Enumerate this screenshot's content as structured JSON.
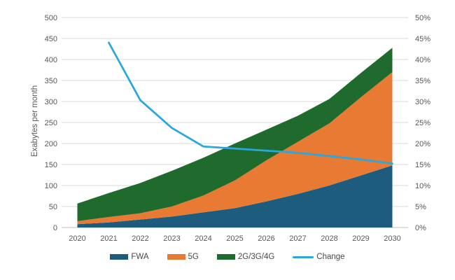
{
  "chart_data": {
    "type": "area",
    "subtype": "stacked-area-with-secondary-line",
    "title": "",
    "ylabel": "Exabytes per month",
    "categories": [
      "2020",
      "2021",
      "2022",
      "2023",
      "2024",
      "2025",
      "2026",
      "2027",
      "2028",
      "2029",
      "2030"
    ],
    "series": [
      {
        "name": "FWA",
        "kind": "area",
        "axis": "left",
        "color": "#1D5C7D",
        "values": [
          8,
          12,
          19,
          26,
          36,
          46,
          62,
          80,
          100,
          124,
          148
        ]
      },
      {
        "name": "5G",
        "kind": "area",
        "axis": "left",
        "color": "#E87A33",
        "values": [
          7,
          13,
          15,
          24,
          40,
          66,
          98,
          124,
          148,
          186,
          222
        ]
      },
      {
        "name": "2G/3G/4G",
        "kind": "area",
        "axis": "left",
        "color": "#1F6B2E",
        "values": [
          42,
          57,
          72,
          85,
          90,
          88,
          73,
          62,
          58,
          58,
          58
        ]
      },
      {
        "name": "Change",
        "kind": "line",
        "axis": "right",
        "color": "#2AA7DD",
        "values": [
          null,
          44,
          30.3,
          23.7,
          19.3,
          18.8,
          18.3,
          17.8,
          17,
          16.2,
          15.2
        ]
      }
    ],
    "totals_left_axis": [
      57,
      82,
      106,
      135,
      166,
      200,
      233,
      266,
      306,
      368,
      428
    ],
    "left_axis": {
      "min": 0,
      "max": 500,
      "step": 50,
      "tick_labels": [
        "0",
        "50",
        "100",
        "150",
        "200",
        "250",
        "300",
        "350",
        "400",
        "450",
        "500"
      ]
    },
    "right_axis": {
      "min": 0,
      "max": 50,
      "step": 5,
      "tick_labels": [
        "0%",
        "5%",
        "10%",
        "15%",
        "20%",
        "25%",
        "30%",
        "35%",
        "40%",
        "45%",
        "50%"
      ]
    },
    "grid": true,
    "legend_position": "bottom",
    "colors": {
      "gridline": "#D9D9D9",
      "axis_line": "#BFBFBF",
      "tick_text": "#595959",
      "legend_text": "#474747"
    }
  }
}
